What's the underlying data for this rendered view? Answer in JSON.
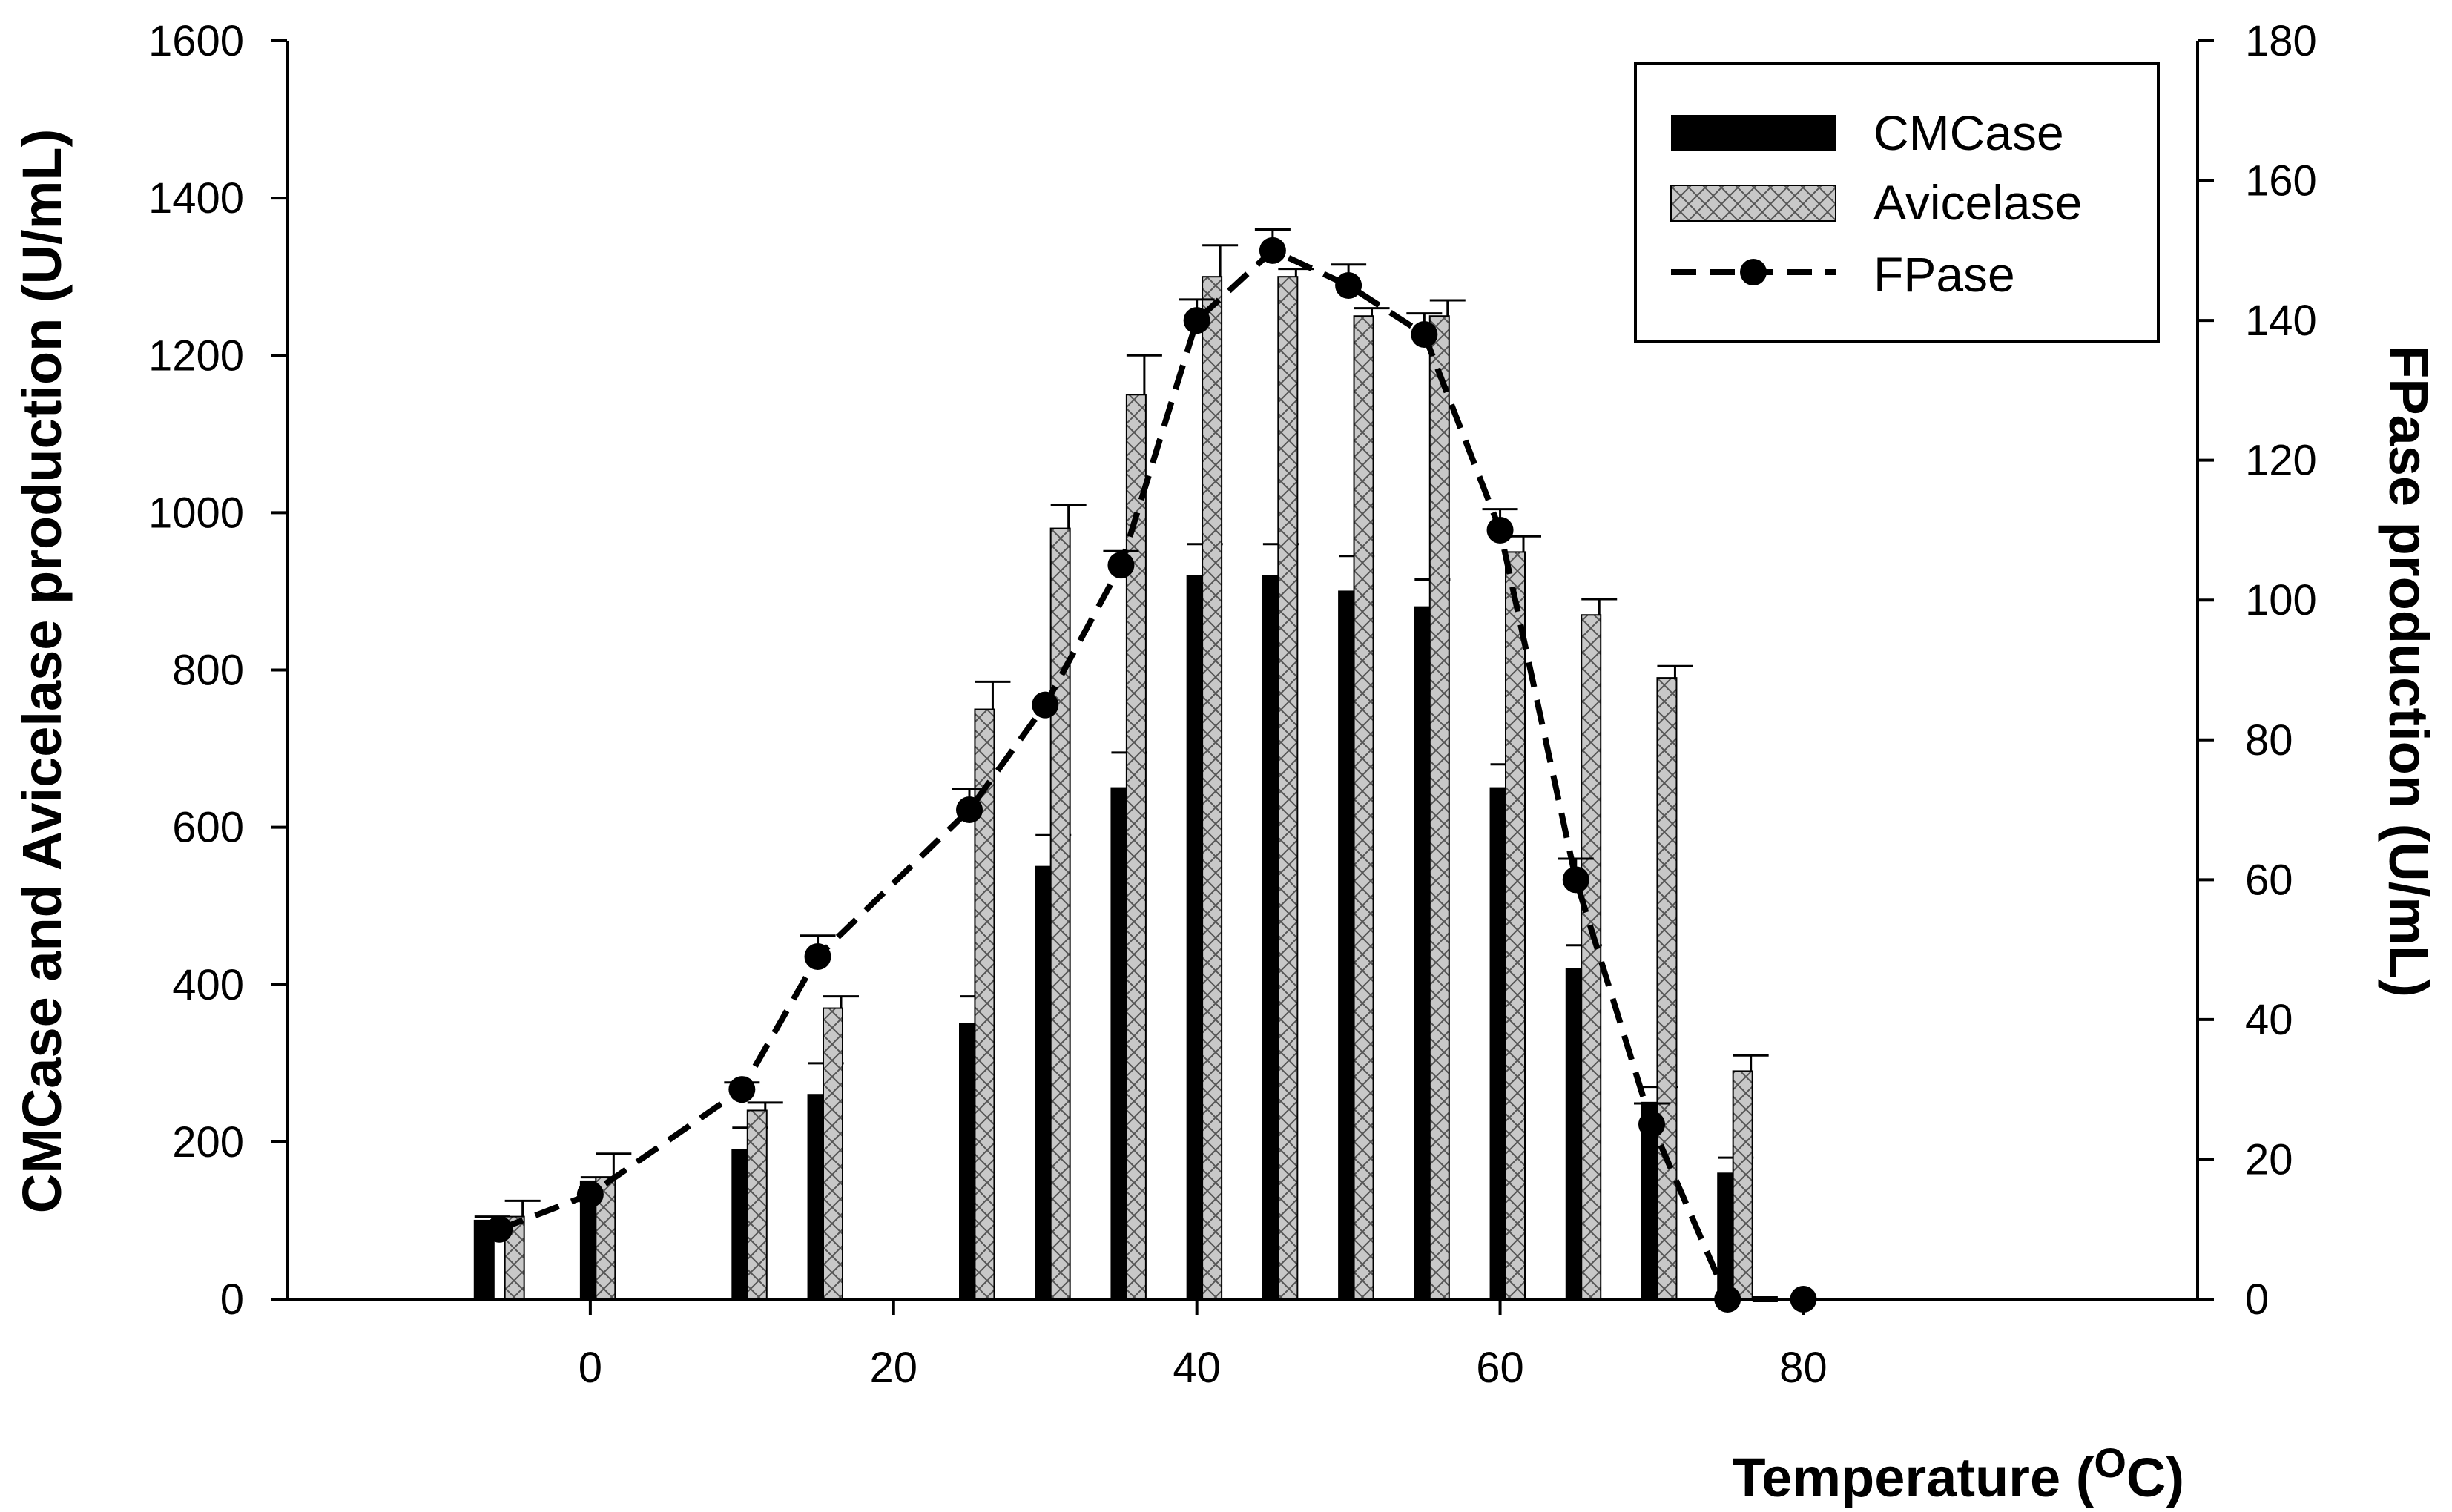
{
  "chart_data": {
    "type": "bar",
    "xlabel": "Temperature (",
    "xlabel_superscript": "O",
    "xlabel_suffix": "C)",
    "ylabel_left": "CMCase and Avicelase production (U/mL)",
    "ylabel_right": "FPase production (U/mL)",
    "xlim": [
      -20,
      106
    ],
    "ylim_left": [
      0,
      1600
    ],
    "ylim_right": [
      0,
      180
    ],
    "x_ticks": [
      0,
      20,
      40,
      60,
      80
    ],
    "y_left_ticks": [
      0,
      200,
      400,
      600,
      800,
      1000,
      1200,
      1400,
      1600
    ],
    "y_right_ticks": [
      0,
      20,
      40,
      60,
      80,
      100,
      120,
      140,
      160,
      180
    ],
    "legend_position": "top-right",
    "legend": [
      "CMCase",
      "Avicelase",
      "FPase"
    ],
    "series": [
      {
        "name": "CMCase",
        "kind": "bar",
        "axis": "left",
        "color": "#000000",
        "x": [
          -7,
          0,
          10,
          15,
          25,
          30,
          35,
          40,
          45,
          50,
          55,
          60,
          65,
          70,
          75
        ],
        "values": [
          100,
          150,
          190,
          260,
          350,
          550,
          650,
          920,
          920,
          900,
          880,
          650,
          420,
          250,
          160
        ],
        "errors": [
          5,
          5,
          28,
          40,
          35,
          40,
          45,
          40,
          40,
          45,
          35,
          30,
          30,
          20,
          20
        ]
      },
      {
        "name": "Avicelase",
        "kind": "bar",
        "axis": "left",
        "color": "#c8c8c8",
        "x": [
          -5,
          1,
          11,
          16,
          26,
          31,
          36,
          41,
          46,
          51,
          56,
          61,
          66,
          71,
          76
        ],
        "values": [
          105,
          155,
          240,
          370,
          750,
          980,
          1150,
          1300,
          1300,
          1250,
          1250,
          950,
          870,
          790,
          290
        ],
        "errors": [
          20,
          30,
          10,
          15,
          35,
          30,
          50,
          40,
          10,
          10,
          20,
          20,
          20,
          15,
          20
        ]
      },
      {
        "name": "FPase",
        "kind": "line",
        "axis": "right",
        "color": "#000000",
        "x": [
          -6,
          0,
          10,
          15,
          25,
          30,
          35,
          40,
          45,
          50,
          55,
          60,
          65,
          70,
          75,
          80
        ],
        "values": [
          10,
          15,
          30,
          49,
          70,
          85,
          105,
          140,
          150,
          145,
          138,
          110,
          60,
          25,
          0,
          0
        ],
        "errors": [
          0,
          0,
          1,
          3,
          3,
          0,
          2,
          3,
          3,
          3,
          3,
          3,
          3,
          3,
          0,
          0
        ]
      }
    ]
  }
}
